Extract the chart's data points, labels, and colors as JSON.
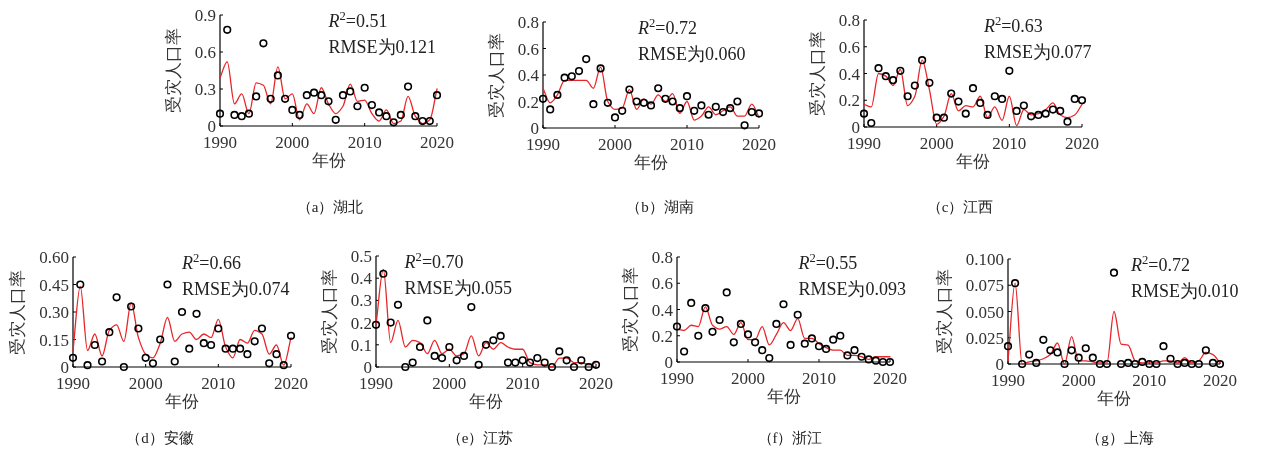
{
  "chart_data": [
    {
      "type": "scatter",
      "xlabel": "年份",
      "ylabel": "受灾人口率",
      "annotations": [
        "*R*$^{2}$=0.51",
        "RMSE为0.121",
        "（a）湖北"
      ],
      "x": [
        1990,
        1991,
        1992,
        1993,
        1994,
        1995,
        1996,
        1997,
        1998,
        1999,
        2000,
        2001,
        2002,
        2003,
        2004,
        2005,
        2006,
        2007,
        2008,
        2009,
        2010,
        2011,
        2012,
        2013,
        2014,
        2015,
        2016,
        2017,
        2018,
        2019,
        2020
      ],
      "xlim": [
        1990,
        2020
      ],
      "xticks": [
        1990,
        2000,
        2010,
        2020
      ],
      "ylim": [
        0,
        0.9
      ],
      "yticks": [
        0,
        0.3,
        0.6,
        0.9
      ],
      "series": [
        {
          "marker": "circle",
          "color": "#000000",
          "values": [
            0.1,
            0.78,
            0.09,
            0.08,
            0.1,
            0.24,
            0.67,
            0.22,
            0.41,
            0.22,
            0.13,
            0.09,
            0.25,
            0.27,
            0.25,
            0.2,
            0.05,
            0.25,
            0.28,
            0.16,
            0.31,
            0.17,
            0.11,
            0.08,
            0.03,
            0.09,
            0.32,
            0.08,
            0.04,
            0.04,
            0.25
          ]
        },
        {
          "type": "line",
          "marker": "none",
          "color": "#e8262a",
          "values": [
            0.39,
            0.52,
            0.18,
            0.26,
            0.1,
            0.35,
            0.33,
            0.18,
            0.48,
            0.22,
            0.26,
            0.05,
            0.18,
            0.1,
            0.31,
            0.18,
            0.1,
            0.16,
            0.34,
            0.2,
            0.21,
            0.1,
            0.04,
            0.13,
            0.02,
            0.04,
            0.24,
            0.08,
            0.02,
            0.05,
            0.3
          ]
        }
      ]
    },
    {
      "type": "scatter",
      "xlabel": "年份",
      "ylabel": "受灾人口率",
      "annotations": [
        "*R*$^{2}$=0.72",
        "RMSE为0.060",
        "（b）湖南"
      ],
      "x": [
        1990,
        1991,
        1992,
        1993,
        1994,
        1995,
        1996,
        1997,
        1998,
        1999,
        2000,
        2001,
        2002,
        2003,
        2004,
        2005,
        2006,
        2007,
        2008,
        2009,
        2010,
        2011,
        2012,
        2013,
        2014,
        2015,
        2016,
        2017,
        2018,
        2019,
        2020
      ],
      "xlim": [
        1990,
        2020
      ],
      "xticks": [
        1990,
        2000,
        2010,
        2020
      ],
      "ylim": [
        0,
        0.8
      ],
      "yticks": [
        0,
        0.2,
        0.4,
        0.6,
        0.8
      ],
      "series": [
        {
          "marker": "circle",
          "color": "#000000",
          "values": [
            0.22,
            0.14,
            0.25,
            0.38,
            0.39,
            0.43,
            0.52,
            0.18,
            0.45,
            0.19,
            0.08,
            0.13,
            0.29,
            0.2,
            0.19,
            0.17,
            0.3,
            0.22,
            0.2,
            0.15,
            0.24,
            0.13,
            0.17,
            0.1,
            0.16,
            0.12,
            0.15,
            0.2,
            0.02,
            0.12,
            0.11
          ]
        },
        {
          "type": "line",
          "marker": "none",
          "color": "#e8262a",
          "values": [
            0.3,
            0.19,
            0.25,
            0.36,
            0.36,
            0.36,
            0.36,
            0.3,
            0.46,
            0.2,
            0.14,
            0.15,
            0.29,
            0.14,
            0.22,
            0.18,
            0.25,
            0.2,
            0.26,
            0.11,
            0.2,
            0.06,
            0.09,
            0.16,
            0.1,
            0.13,
            0.16,
            0.09,
            0.09,
            0.18,
            0.08
          ]
        }
      ]
    },
    {
      "type": "scatter",
      "xlabel": "年份",
      "ylabel": "受灾人口率",
      "annotations": [
        "*R*$^{2}$=0.63",
        "RMSE为0.077",
        "（c）江西"
      ],
      "x": [
        1990,
        1991,
        1992,
        1993,
        1994,
        1995,
        1996,
        1997,
        1998,
        1999,
        2000,
        2001,
        2002,
        2003,
        2004,
        2005,
        2006,
        2007,
        2008,
        2009,
        2010,
        2011,
        2012,
        2013,
        2014,
        2015,
        2016,
        2017,
        2018,
        2019,
        2020
      ],
      "xlim": [
        1990,
        2020
      ],
      "xticks": [
        1990,
        2000,
        2010,
        2020
      ],
      "ylim": [
        0,
        0.8
      ],
      "yticks": [
        0,
        0.2,
        0.4,
        0.6,
        0.8
      ],
      "series": [
        {
          "marker": "circle",
          "color": "#000000",
          "values": [
            0.1,
            0.03,
            0.44,
            0.38,
            0.35,
            0.42,
            0.23,
            0.31,
            0.5,
            0.33,
            0.07,
            0.07,
            0.25,
            0.19,
            0.1,
            0.29,
            0.18,
            0.09,
            0.23,
            0.21,
            0.42,
            0.12,
            0.16,
            0.08,
            0.09,
            0.1,
            0.13,
            0.12,
            0.04,
            0.21,
            0.2
          ]
        },
        {
          "type": "line",
          "marker": "none",
          "color": "#e8262a",
          "values": [
            0.17,
            0.15,
            0.4,
            0.38,
            0.31,
            0.43,
            0.16,
            0.23,
            0.5,
            0.28,
            0.02,
            0.08,
            0.25,
            0.12,
            0.16,
            0.15,
            0.23,
            0.07,
            0.15,
            0.05,
            0.23,
            0.01,
            0.13,
            0.09,
            0.1,
            0.13,
            0.18,
            0.09,
            0.07,
            0.09,
            0.17
          ]
        }
      ]
    },
    {
      "type": "scatter",
      "xlabel": "年份",
      "ylabel": "受灾人口率",
      "annotations": [
        "*R*$^{2}$=0.66",
        "RMSE为0.074",
        "（d）安徽"
      ],
      "x": [
        1990,
        1991,
        1992,
        1993,
        1994,
        1995,
        1996,
        1997,
        1998,
        1999,
        2000,
        2001,
        2002,
        2003,
        2004,
        2005,
        2006,
        2007,
        2008,
        2009,
        2010,
        2011,
        2012,
        2013,
        2014,
        2015,
        2016,
        2017,
        2018,
        2019,
        2020
      ],
      "xlim": [
        1990,
        2020
      ],
      "xticks": [
        1990,
        2000,
        2010,
        2020
      ],
      "ylim": [
        0,
        0.6
      ],
      "yticks": [
        0,
        {
          "value": 0.15,
          "label": "0.15"
        },
        {
          "value": 0.3,
          "label": "0.30"
        },
        {
          "value": 0.45,
          "label": "0.45"
        },
        {
          "value": 0.6,
          "label": "0.60"
        }
      ],
      "series": [
        {
          "marker": "circle",
          "color": "#000000",
          "values": [
            0.05,
            0.45,
            0.01,
            0.12,
            0.03,
            0.19,
            0.38,
            0.0,
            0.33,
            0.21,
            0.05,
            0.02,
            0.15,
            0.45,
            0.03,
            0.3,
            0.1,
            0.29,
            0.13,
            0.12,
            0.21,
            0.1,
            0.1,
            0.1,
            0.07,
            0.14,
            0.21,
            0.02,
            0.07,
            0.01,
            0.17
          ]
        },
        {
          "type": "line",
          "marker": "none",
          "color": "#e8262a",
          "values": [
            0.09,
            0.44,
            0.09,
            0.18,
            0.06,
            0.2,
            0.23,
            0.14,
            0.35,
            0.16,
            0.07,
            0.05,
            0.13,
            0.27,
            0.14,
            0.18,
            0.19,
            0.15,
            0.18,
            0.16,
            0.26,
            0.11,
            0.05,
            0.15,
            0.13,
            0.2,
            0.18,
            0.07,
            0.12,
            0.01,
            0.16
          ]
        }
      ]
    },
    {
      "type": "scatter",
      "xlabel": "年份",
      "ylabel": "受灾人口率",
      "annotations": [
        "*R*$^{2}$=0.70",
        "RMSE为0.055",
        "（e）江苏"
      ],
      "x": [
        1990,
        1991,
        1992,
        1993,
        1994,
        1995,
        1996,
        1997,
        1998,
        1999,
        2000,
        2001,
        2002,
        2003,
        2004,
        2005,
        2006,
        2007,
        2008,
        2009,
        2010,
        2011,
        2012,
        2013,
        2014,
        2015,
        2016,
        2017,
        2018,
        2019,
        2020
      ],
      "xlim": [
        1990,
        2020
      ],
      "xticks": [
        1990,
        2000,
        2010,
        2020
      ],
      "ylim": [
        0,
        0.5
      ],
      "yticks": [
        0,
        0.1,
        0.2,
        0.3,
        0.4,
        0.5
      ],
      "series": [
        {
          "marker": "circle",
          "color": "#000000",
          "values": [
            0.19,
            0.42,
            0.2,
            0.28,
            0.0,
            0.02,
            0.09,
            0.21,
            0.05,
            0.04,
            0.09,
            0.03,
            0.05,
            0.27,
            0.01,
            0.1,
            0.12,
            0.14,
            0.02,
            0.02,
            0.03,
            0.02,
            0.04,
            0.02,
            0.0,
            0.07,
            0.03,
            0.0,
            0.03,
            0.0,
            0.01
          ]
        },
        {
          "type": "line",
          "marker": "none",
          "color": "#e8262a",
          "values": [
            0.19,
            0.44,
            0.11,
            0.21,
            0.09,
            0.12,
            0.11,
            0.06,
            0.12,
            0.06,
            0.08,
            0.05,
            0.06,
            0.14,
            0.05,
            0.11,
            0.08,
            0.11,
            0.09,
            0.08,
            0.08,
            0.02,
            0.01,
            0.01,
            0.0,
            0.04,
            0.04,
            0.02,
            0.02,
            0.01,
            0.02
          ]
        }
      ]
    },
    {
      "type": "scatter",
      "xlabel": "年份",
      "ylabel": "受灾人口率",
      "annotations": [
        "*R*$^{2}$=0.55",
        "RMSE为0.093",
        "（f）浙江"
      ],
      "x": [
        1990,
        1991,
        1992,
        1993,
        1994,
        1995,
        1996,
        1997,
        1998,
        1999,
        2000,
        2001,
        2002,
        2003,
        2004,
        2005,
        2006,
        2007,
        2008,
        2009,
        2010,
        2011,
        2012,
        2013,
        2014,
        2015,
        2016,
        2017,
        2018,
        2019,
        2020
      ],
      "xlim": [
        1990,
        2020
      ],
      "xticks": [
        1990,
        2000,
        2010,
        2020
      ],
      "ylim": [
        0,
        0.8
      ],
      "yticks": [
        0,
        0.2,
        0.4,
        0.6,
        0.8
      ],
      "series": [
        {
          "marker": "circle",
          "color": "#000000",
          "values": [
            0.27,
            0.08,
            0.45,
            0.2,
            0.41,
            0.23,
            0.32,
            0.53,
            0.15,
            0.29,
            0.21,
            0.15,
            0.09,
            0.03,
            0.29,
            0.44,
            0.13,
            0.36,
            0.14,
            0.18,
            0.12,
            0.1,
            0.17,
            0.2,
            0.05,
            0.09,
            0.04,
            0.02,
            0.01,
            0.0,
            0.0
          ]
        },
        {
          "type": "line",
          "marker": "none",
          "color": "#e8262a",
          "values": [
            0.25,
            0.24,
            0.28,
            0.27,
            0.42,
            0.28,
            0.25,
            0.27,
            0.21,
            0.3,
            0.17,
            0.17,
            0.27,
            0.13,
            0.21,
            0.3,
            0.24,
            0.33,
            0.18,
            0.18,
            0.14,
            0.11,
            0.09,
            0.09,
            0.05,
            0.05,
            0.04,
            0.02,
            0.04,
            0.04,
            0.04
          ]
        }
      ]
    },
    {
      "type": "scatter",
      "xlabel": "年份",
      "ylabel": "受灾人口率",
      "annotations": [
        "*R*$^{2}$=0.72",
        "RMSE为0.010",
        "（g）上海"
      ],
      "x": [
        1990,
        1991,
        1992,
        1993,
        1994,
        1995,
        1996,
        1997,
        1998,
        1999,
        2000,
        2001,
        2002,
        2003,
        2004,
        2005,
        2006,
        2007,
        2008,
        2009,
        2010,
        2011,
        2012,
        2013,
        2014,
        2015,
        2016,
        2017,
        2018,
        2019,
        2020
      ],
      "xlim": [
        1990,
        2020
      ],
      "xticks": [
        1990,
        2000,
        2010,
        2020
      ],
      "ylim": [
        0,
        0.1
      ],
      "yticks": [
        0,
        {
          "value": 0.025,
          "label": "0.025"
        },
        {
          "value": 0.05,
          "label": "0.050"
        },
        {
          "value": 0.075,
          "label": "0.075"
        },
        {
          "value": 0.1,
          "label": "0.100"
        }
      ],
      "series": [
        {
          "marker": "circle",
          "color": "#000000",
          "values": [
            0.017,
            0.077,
            0.0,
            0.009,
            0.001,
            0.023,
            0.013,
            0.011,
            0.0,
            0.013,
            0.006,
            0.015,
            0.006,
            0.0,
            0.0,
            0.087,
            0.0,
            0.001,
            0.0,
            0.002,
            0.0,
            0.0,
            0.017,
            0.005,
            0.0,
            0.001,
            0.0,
            0.0,
            0.013,
            0.001,
            0.0
          ]
        },
        {
          "type": "line",
          "marker": "none",
          "color": "#e8262a",
          "values": [
            0.003,
            0.077,
            0.0,
            0.002,
            0.003,
            0.005,
            0.009,
            0.02,
            0.0,
            0.026,
            0.003,
            0.003,
            0.002,
            0.001,
            0.001,
            0.05,
            0.019,
            0.018,
            0.003,
            0.001,
            0.001,
            0.001,
            0.003,
            0.003,
            0.001,
            0.006,
            0.001,
            0.003,
            0.011,
            0.009,
            0.001
          ]
        }
      ]
    }
  ]
}
